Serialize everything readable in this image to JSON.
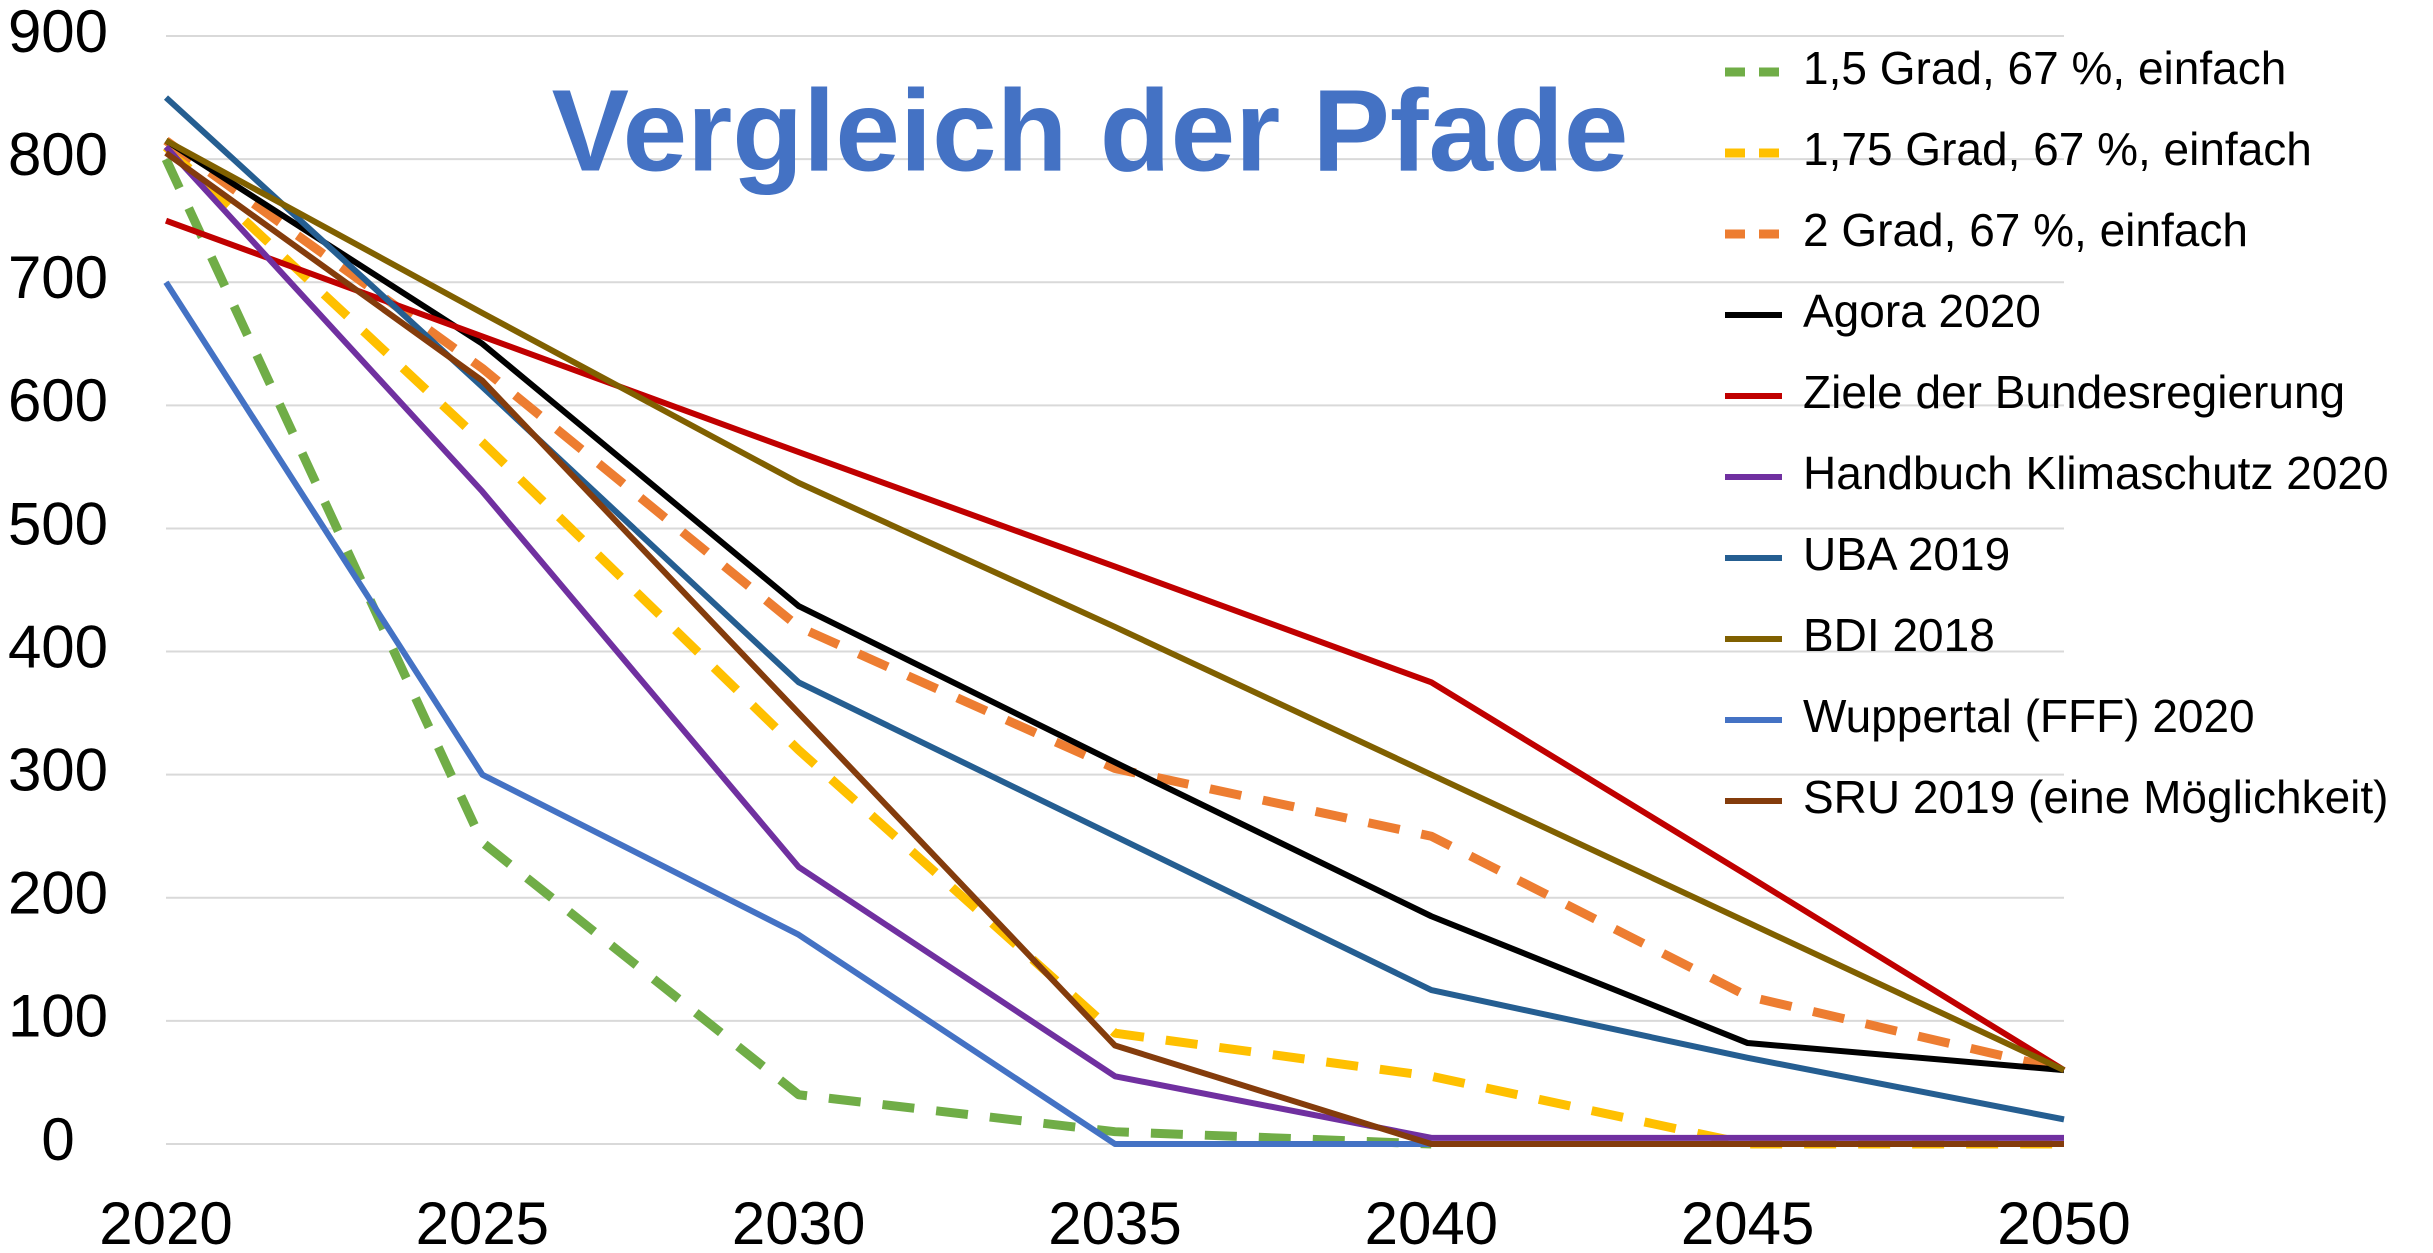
{
  "chart_data": {
    "type": "line",
    "title": "Vergleich der Pfade",
    "x": [
      2020,
      2025,
      2030,
      2035,
      2040,
      2045,
      2050
    ],
    "xlim": [
      2020,
      2050
    ],
    "xticks": [
      2020,
      2025,
      2030,
      2035,
      2040,
      2045,
      2050
    ],
    "ylim": [
      0,
      900
    ],
    "yticks": [
      0,
      100,
      200,
      300,
      400,
      500,
      600,
      700,
      800,
      900
    ],
    "grid": true,
    "legend": "right",
    "series": [
      {
        "name": "1,5 Grad, 67 %, einfach",
        "color": "#70ad47",
        "dashed": true,
        "values": [
          800,
          245,
          40,
          10,
          0,
          null,
          null
        ]
      },
      {
        "name": "1,75 Grad, 67 %, einfach",
        "color": "#ffc000",
        "dashed": true,
        "values": [
          810,
          570,
          320,
          90,
          55,
          0,
          0
        ]
      },
      {
        "name": "2 Grad, 67 %, einfach",
        "color": "#ed7d31",
        "dashed": true,
        "values": [
          815,
          630,
          420,
          305,
          250,
          120,
          60
        ]
      },
      {
        "name": "Agora 2020",
        "color": "#000000",
        "dashed": false,
        "values": [
          815,
          650,
          437,
          310,
          185,
          82,
          60
        ]
      },
      {
        "name": "Ziele der Bundesregierung",
        "color": "#c00000",
        "dashed": false,
        "values": [
          750,
          656,
          562,
          469,
          375,
          218,
          60
        ]
      },
      {
        "name": "Handbuch Klimaschutz 2020",
        "color": "#7030a0",
        "dashed": false,
        "values": [
          810,
          530,
          225,
          55,
          5,
          5,
          5
        ]
      },
      {
        "name": "UBA 2019",
        "color": "#255e91",
        "dashed": false,
        "values": [
          850,
          615,
          375,
          250,
          125,
          70,
          20
        ]
      },
      {
        "name": "BDI 2018",
        "color": "#806000",
        "dashed": false,
        "values": [
          815,
          675,
          537,
          420,
          300,
          180,
          60
        ]
      },
      {
        "name": "Wuppertal (FFF) 2020",
        "color": "#4472c4",
        "dashed": false,
        "values": [
          700,
          300,
          170,
          0,
          0,
          0,
          0
        ]
      },
      {
        "name": "SRU 2019 (eine Möglichkeit)",
        "color": "#843c0c",
        "dashed": false,
        "values": [
          805,
          620,
          350,
          80,
          0,
          0,
          0
        ]
      }
    ]
  }
}
